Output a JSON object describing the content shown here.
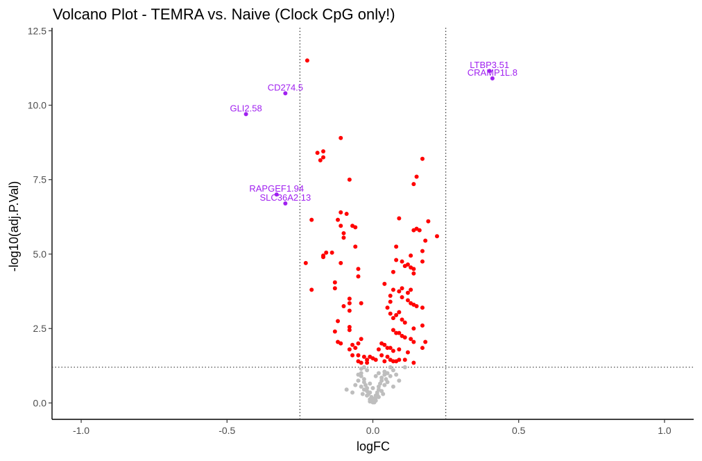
{
  "chart_data": {
    "type": "scatter",
    "title": "Volcano Plot - TEMRA vs. Naive (Clock CpG only!)",
    "xlabel": "logFC",
    "ylabel": "-log10(adj.P.Val)",
    "xlim": [
      -1.1,
      1.1
    ],
    "ylim": [
      -0.55,
      12.6
    ],
    "x_ticks": [
      -1.0,
      -0.5,
      0.0,
      0.5,
      1.0
    ],
    "x_tick_labels": [
      "-1.0",
      "-0.5",
      "0.0",
      "0.5",
      "1.0"
    ],
    "y_ticks": [
      0,
      2.5,
      5,
      7.5,
      10,
      12.5
    ],
    "y_tick_labels": [
      "0.0",
      "2.5",
      "5.0",
      "7.5",
      "10.0",
      "12.5"
    ],
    "grid": false,
    "thresholds": {
      "logFC": [
        -0.25,
        0.25
      ],
      "neg_log10_p": 1.2
    },
    "colors": {
      "significant": "#ff0000",
      "not_significant": "#bebebe",
      "labeled": "#a020f0",
      "threshold_line": "#333333",
      "axis": "#000000"
    },
    "series": [
      {
        "color": "#ff0000",
        "points": [
          [
            -0.225,
            11.5
          ],
          [
            -0.11,
            8.9
          ],
          [
            -0.19,
            8.4
          ],
          [
            -0.17,
            8.45
          ],
          [
            -0.18,
            8.15
          ],
          [
            -0.17,
            8.25
          ],
          [
            -0.08,
            7.5
          ],
          [
            -0.21,
            6.15
          ],
          [
            -0.11,
            6.4
          ],
          [
            -0.09,
            6.35
          ],
          [
            -0.12,
            6.15
          ],
          [
            -0.11,
            5.95
          ],
          [
            -0.07,
            5.95
          ],
          [
            -0.06,
            5.9
          ],
          [
            -0.1,
            5.7
          ],
          [
            -0.23,
            4.7
          ],
          [
            -0.17,
            4.95
          ],
          [
            -0.16,
            5.05
          ],
          [
            -0.17,
            4.9
          ],
          [
            -0.14,
            5.05
          ],
          [
            -0.06,
            5.25
          ],
          [
            -0.1,
            5.55
          ],
          [
            -0.11,
            4.7
          ],
          [
            -0.05,
            4.5
          ],
          [
            -0.05,
            4.25
          ],
          [
            -0.13,
            4.05
          ],
          [
            -0.21,
            3.8
          ],
          [
            -0.13,
            3.85
          ],
          [
            -0.08,
            3.5
          ],
          [
            -0.08,
            3.35
          ],
          [
            -0.1,
            3.25
          ],
          [
            -0.04,
            3.35
          ],
          [
            -0.08,
            3.1
          ],
          [
            -0.12,
            2.75
          ],
          [
            -0.08,
            2.55
          ],
          [
            -0.08,
            2.45
          ],
          [
            -0.13,
            2.4
          ],
          [
            -0.12,
            2.05
          ],
          [
            -0.11,
            2.0
          ],
          [
            -0.08,
            1.8
          ],
          [
            -0.04,
            2.15
          ],
          [
            -0.05,
            2.0
          ],
          [
            -0.07,
            1.95
          ],
          [
            -0.06,
            1.85
          ],
          [
            -0.07,
            1.6
          ],
          [
            -0.05,
            1.6
          ],
          [
            -0.03,
            1.55
          ],
          [
            -0.02,
            1.45
          ],
          [
            -0.05,
            1.4
          ],
          [
            -0.04,
            1.35
          ],
          [
            -0.01,
            1.55
          ],
          [
            0.0,
            1.5
          ],
          [
            0.01,
            1.45
          ],
          [
            -0.02,
            1.35
          ],
          [
            0.17,
            8.2
          ],
          [
            0.15,
            7.6
          ],
          [
            0.14,
            7.35
          ],
          [
            0.19,
            6.1
          ],
          [
            0.09,
            6.2
          ],
          [
            0.14,
            5.8
          ],
          [
            0.16,
            5.8
          ],
          [
            0.15,
            5.85
          ],
          [
            0.22,
            5.6
          ],
          [
            0.18,
            5.45
          ],
          [
            0.08,
            5.25
          ],
          [
            0.17,
            5.1
          ],
          [
            0.13,
            4.95
          ],
          [
            0.08,
            4.8
          ],
          [
            0.1,
            4.75
          ],
          [
            0.11,
            4.6
          ],
          [
            0.12,
            4.65
          ],
          [
            0.13,
            4.55
          ],
          [
            0.14,
            4.5
          ],
          [
            0.17,
            4.75
          ],
          [
            0.07,
            4.4
          ],
          [
            0.14,
            4.35
          ],
          [
            0.04,
            4.0
          ],
          [
            0.07,
            3.8
          ],
          [
            0.09,
            3.75
          ],
          [
            0.1,
            3.85
          ],
          [
            0.12,
            3.7
          ],
          [
            0.13,
            3.8
          ],
          [
            0.1,
            3.55
          ],
          [
            0.12,
            3.45
          ],
          [
            0.13,
            3.35
          ],
          [
            0.14,
            3.3
          ],
          [
            0.15,
            3.25
          ],
          [
            0.17,
            3.2
          ],
          [
            0.06,
            3.6
          ],
          [
            0.06,
            3.4
          ],
          [
            0.05,
            3.2
          ],
          [
            0.06,
            3.0
          ],
          [
            0.08,
            2.95
          ],
          [
            0.09,
            3.05
          ],
          [
            0.07,
            2.85
          ],
          [
            0.1,
            2.8
          ],
          [
            0.11,
            2.7
          ],
          [
            0.14,
            2.5
          ],
          [
            0.17,
            2.6
          ],
          [
            0.07,
            2.45
          ],
          [
            0.08,
            2.35
          ],
          [
            0.09,
            2.35
          ],
          [
            0.1,
            2.25
          ],
          [
            0.11,
            2.2
          ],
          [
            0.13,
            2.15
          ],
          [
            0.14,
            2.05
          ],
          [
            0.18,
            2.05
          ],
          [
            0.17,
            1.85
          ],
          [
            0.03,
            2.0
          ],
          [
            0.04,
            1.95
          ],
          [
            0.05,
            1.85
          ],
          [
            0.06,
            1.85
          ],
          [
            0.07,
            1.75
          ],
          [
            0.09,
            1.8
          ],
          [
            0.12,
            1.7
          ],
          [
            0.02,
            1.8
          ],
          [
            0.03,
            1.6
          ],
          [
            0.05,
            1.55
          ],
          [
            0.06,
            1.45
          ],
          [
            0.08,
            1.4
          ],
          [
            0.11,
            1.45
          ],
          [
            0.14,
            1.35
          ],
          [
            0.04,
            1.4
          ],
          [
            0.07,
            1.4
          ],
          [
            0.09,
            1.45
          ]
        ]
      },
      {
        "color": "#bebebe",
        "points": [
          [
            0.0,
            0.02
          ],
          [
            -0.01,
            0.05
          ],
          [
            0.01,
            0.08
          ],
          [
            -0.01,
            0.12
          ],
          [
            0.005,
            0.15
          ],
          [
            -0.005,
            0.2
          ],
          [
            0.01,
            0.25
          ],
          [
            -0.015,
            0.3
          ],
          [
            0.015,
            0.35
          ],
          [
            -0.02,
            0.4
          ],
          [
            0.02,
            0.45
          ],
          [
            -0.02,
            0.5
          ],
          [
            0.02,
            0.55
          ],
          [
            -0.025,
            0.6
          ],
          [
            0.025,
            0.65
          ],
          [
            -0.03,
            0.7
          ],
          [
            0.03,
            0.75
          ],
          [
            -0.03,
            0.8
          ],
          [
            0.03,
            0.85
          ],
          [
            -0.04,
            0.9
          ],
          [
            0.04,
            0.95
          ],
          [
            -0.04,
            1.0
          ],
          [
            0.04,
            1.05
          ],
          [
            -0.02,
            1.1
          ],
          [
            0.05,
            1.0
          ],
          [
            0.06,
            0.9
          ],
          [
            0.07,
            1.1
          ],
          [
            -0.05,
            0.75
          ],
          [
            -0.06,
            0.6
          ],
          [
            -0.07,
            0.35
          ],
          [
            -0.09,
            0.45
          ],
          [
            0.07,
            0.55
          ],
          [
            0.09,
            0.75
          ],
          [
            0.08,
            0.95
          ],
          [
            0.06,
            1.2
          ],
          [
            -0.04,
            1.15
          ],
          [
            0.005,
            0.02
          ],
          [
            -0.005,
            0.1
          ],
          [
            0.01,
            0.18
          ],
          [
            0.015,
            0.28
          ],
          [
            -0.01,
            0.35
          ],
          [
            0.02,
            0.2
          ],
          [
            -0.02,
            0.25
          ],
          [
            0.03,
            0.4
          ],
          [
            -0.03,
            0.45
          ],
          [
            0.04,
            0.6
          ],
          [
            -0.04,
            0.55
          ],
          [
            0.05,
            0.7
          ],
          [
            -0.05,
            0.95
          ],
          [
            0.01,
            0.9
          ],
          [
            -0.01,
            0.65
          ],
          [
            0.0,
            0.5
          ],
          [
            0.02,
            1.0
          ],
          [
            0.11,
            1.2
          ],
          [
            -0.03,
            1.2
          ],
          [
            0.045,
            0.8
          ],
          [
            -0.035,
            0.3
          ],
          [
            0.035,
            0.3
          ]
        ]
      },
      {
        "color": "#a020f0",
        "points": [
          [
            0.4,
            11.15,
            "LTBP3.51"
          ],
          [
            0.41,
            10.9,
            "CRAMP1L.8"
          ],
          [
            -0.3,
            10.4,
            "CD274.5"
          ],
          [
            -0.435,
            9.7,
            "GLI2.58"
          ],
          [
            -0.33,
            7.0,
            "RAPGEF1.94"
          ],
          [
            -0.3,
            6.7,
            "SLC36A2.13"
          ]
        ]
      }
    ]
  }
}
